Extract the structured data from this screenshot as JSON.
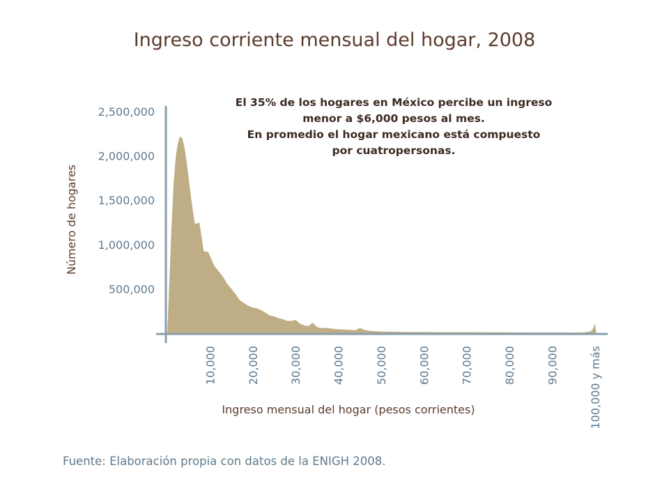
{
  "title": "Ingreso corriente mensual del hogar, 2008",
  "annotation": [
    "El 35% de los hogares en México percibe un ingreso",
    "menor a $6,000 pesos al mes.",
    "En promedio el hogar mexicano está compuesto",
    "por cuatropersonas."
  ],
  "source": "Fuente: Elaboración propia con datos de la ENIGH 2008.",
  "colors": {
    "fill": "#bfae85",
    "axis": "#8a9eab",
    "tick_label": "#5e7a8e",
    "axis_title": "#5b3b2b"
  },
  "chart_data": {
    "type": "area",
    "title": "Ingreso corriente mensual del hogar, 2008",
    "xlabel": "Ingreso mensual del hogar (pesos corrientes)",
    "ylabel": "Número de hogares",
    "xlim": [
      0,
      101000
    ],
    "ylim": [
      0,
      2500000
    ],
    "yticks": [
      500000,
      1000000,
      1500000,
      2000000,
      2500000
    ],
    "ytick_labels": [
      "500,000",
      "1,000,000",
      "1,500,000",
      "2,000,000",
      "2,500,000"
    ],
    "xticks": [
      10000,
      20000,
      30000,
      40000,
      50000,
      60000,
      70000,
      80000,
      90000,
      100000
    ],
    "xtick_labels": [
      "10,000",
      "20,000",
      "30,000",
      "40,000",
      "50,000",
      "60,000",
      "70,000",
      "80,000",
      "90,000",
      "100,000 y más"
    ],
    "grid": false,
    "x": [
      0,
      500,
      1000,
      1500,
      2000,
      2500,
      3000,
      3500,
      4000,
      4500,
      5000,
      5500,
      6000,
      6500,
      7000,
      7500,
      8000,
      8500,
      9000,
      9500,
      10000,
      11000,
      12000,
      13000,
      14000,
      15000,
      16000,
      17000,
      18000,
      19000,
      20000,
      21000,
      22000,
      23000,
      24000,
      25000,
      26000,
      27000,
      28000,
      29000,
      30000,
      31000,
      32000,
      33000,
      34000,
      35000,
      36000,
      37000,
      38000,
      40000,
      42000,
      44000,
      45000,
      46000,
      47000,
      48000,
      50000,
      55000,
      60000,
      65000,
      70000,
      75000,
      80000,
      85000,
      90000,
      95000,
      97000,
      99000,
      99500,
      100000,
      100300
    ],
    "values": [
      0,
      600000,
      1200000,
      1700000,
      2000000,
      2150000,
      2220000,
      2200000,
      2100000,
      1950000,
      1750000,
      1550000,
      1380000,
      1230000,
      1240000,
      1250000,
      1100000,
      930000,
      920000,
      920000,
      870000,
      760000,
      700000,
      640000,
      560000,
      500000,
      440000,
      370000,
      340000,
      310000,
      290000,
      280000,
      260000,
      230000,
      200000,
      190000,
      170000,
      160000,
      140000,
      140000,
      150000,
      110000,
      90000,
      80000,
      120000,
      70000,
      60000,
      60000,
      55000,
      45000,
      40000,
      35000,
      60000,
      40000,
      30000,
      25000,
      20000,
      15000,
      13000,
      12000,
      12000,
      11000,
      10000,
      9000,
      9000,
      8000,
      8000,
      20000,
      50000,
      110000,
      0
    ]
  }
}
